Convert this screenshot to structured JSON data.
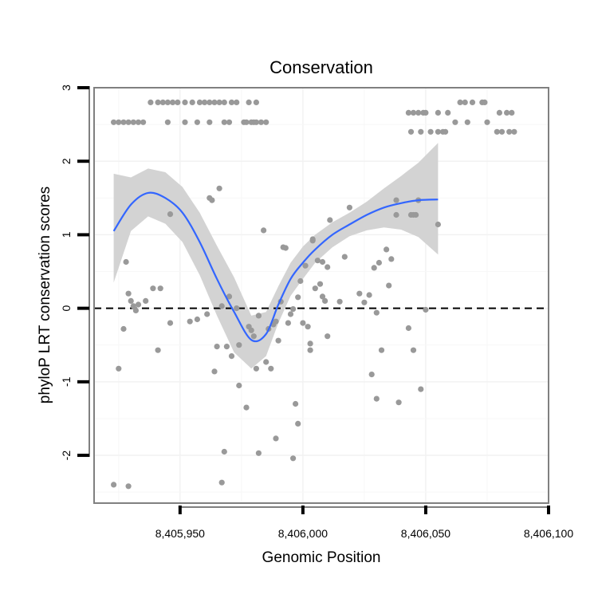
{
  "chart_data": {
    "type": "scatter",
    "title": "Conservation",
    "xlabel": "Genomic Position",
    "ylabel": "phyloP LRT conservation scores",
    "xlim": [
      8405915,
      8406100
    ],
    "ylim": [
      -2.65,
      3.0
    ],
    "x_ticks": [
      8405950,
      8406000,
      8406050,
      8406100
    ],
    "x_tick_labels": [
      "8,405,950",
      "8,406,000",
      "8,406,050",
      "8,406,100"
    ],
    "y_ticks": [
      -2,
      -1,
      0,
      1,
      2,
      3
    ],
    "y_tick_labels": [
      "-2",
      "-1",
      "0",
      "1",
      "2",
      "3"
    ],
    "reference_line": {
      "y": 0,
      "style": "dashed",
      "color": "#000000"
    },
    "grid": true,
    "colors": {
      "points": "#999999",
      "smooth": "#3366FF",
      "band": "#D3D3D3",
      "panel_border": "#808080"
    },
    "points": [
      [
        8405923,
        2.53
      ],
      [
        8405925,
        2.53
      ],
      [
        8405927,
        2.53
      ],
      [
        8405929,
        2.53
      ],
      [
        8405931,
        2.53
      ],
      [
        8405933,
        2.53
      ],
      [
        8405935,
        2.53
      ],
      [
        8405938,
        2.8
      ],
      [
        8405941,
        2.8
      ],
      [
        8405943,
        2.8
      ],
      [
        8405945,
        2.53
      ],
      [
        8405945,
        2.8
      ],
      [
        8405947,
        2.8
      ],
      [
        8405949,
        2.8
      ],
      [
        8405952,
        2.53
      ],
      [
        8405952,
        2.8
      ],
      [
        8405955,
        2.8
      ],
      [
        8405957,
        2.53
      ],
      [
        8405958,
        2.8
      ],
      [
        8405960,
        2.8
      ],
      [
        8405962,
        2.53
      ],
      [
        8405962,
        2.8
      ],
      [
        8405964,
        2.8
      ],
      [
        8405966,
        2.8
      ],
      [
        8405968,
        2.53
      ],
      [
        8405968,
        2.8
      ],
      [
        8405970,
        2.53
      ],
      [
        8405971,
        2.8
      ],
      [
        8405973,
        2.8
      ],
      [
        8405976,
        2.53
      ],
      [
        8405977,
        2.53
      ],
      [
        8405978,
        2.8
      ],
      [
        8405979,
        2.53
      ],
      [
        8405980,
        2.53
      ],
      [
        8405981,
        2.53
      ],
      [
        8405981,
        2.8
      ],
      [
        8405983,
        2.53
      ],
      [
        8405985,
        2.53
      ],
      [
        8406043,
        2.66
      ],
      [
        8406044,
        2.4
      ],
      [
        8406045,
        2.66
      ],
      [
        8406047,
        2.66
      ],
      [
        8406048,
        2.4
      ],
      [
        8406049,
        2.66
      ],
      [
        8406050,
        2.66
      ],
      [
        8406052,
        2.4
      ],
      [
        8406055,
        2.66
      ],
      [
        8406055,
        2.4
      ],
      [
        8406057,
        2.4
      ],
      [
        8406058,
        2.4
      ],
      [
        8406059,
        2.66
      ],
      [
        8406062,
        2.53
      ],
      [
        8406064,
        2.8
      ],
      [
        8406066,
        2.8
      ],
      [
        8406067,
        2.53
      ],
      [
        8406069,
        2.8
      ],
      [
        8406073,
        2.8
      ],
      [
        8406074,
        2.8
      ],
      [
        8406075,
        2.53
      ],
      [
        8406079,
        2.4
      ],
      [
        8406080,
        2.66
      ],
      [
        8406081,
        2.4
      ],
      [
        8406083,
        2.66
      ],
      [
        8406084,
        2.4
      ],
      [
        8406085,
        2.66
      ],
      [
        8406086,
        2.4
      ],
      [
        8405923,
        -2.4
      ],
      [
        8405929,
        -2.42
      ],
      [
        8405925,
        -0.82
      ],
      [
        8405927,
        -0.28
      ],
      [
        8405928,
        0.63
      ],
      [
        8405929,
        0.2
      ],
      [
        8405930,
        0.1
      ],
      [
        8405931,
        0.03
      ],
      [
        8405932,
        -0.03
      ],
      [
        8405933,
        0.05
      ],
      [
        8405936,
        0.1
      ],
      [
        8405939,
        0.27
      ],
      [
        8405942,
        0.27
      ],
      [
        8405941,
        -0.57
      ],
      [
        8405946,
        1.28
      ],
      [
        8405946,
        -0.2
      ],
      [
        8405954,
        -0.18
      ],
      [
        8405957,
        -0.15
      ],
      [
        8405961,
        -0.08
      ],
      [
        8405962,
        1.5
      ],
      [
        8405963,
        1.47
      ],
      [
        8405966,
        1.63
      ],
      [
        8405964,
        -0.86
      ],
      [
        8405965,
        -0.52
      ],
      [
        8405967,
        0.03
      ],
      [
        8405969,
        -0.52
      ],
      [
        8405970,
        0.16
      ],
      [
        8405971,
        -0.65
      ],
      [
        8405973,
        0.0
      ],
      [
        8405974,
        -1.05
      ],
      [
        8405974,
        -0.5
      ],
      [
        8405968,
        -1.95
      ],
      [
        8405967,
        -2.37
      ],
      [
        8405977,
        -1.35
      ],
      [
        8405978,
        -0.25
      ],
      [
        8405979,
        -0.3
      ],
      [
        8405980,
        -0.38
      ],
      [
        8405981,
        -0.82
      ],
      [
        8405982,
        -0.1
      ],
      [
        8405982,
        -1.97
      ],
      [
        8405984,
        1.06
      ],
      [
        8405985,
        -0.73
      ],
      [
        8405986,
        -0.28
      ],
      [
        8405987,
        -0.82
      ],
      [
        8405988,
        -0.22
      ],
      [
        8405989,
        -1.77
      ],
      [
        8405989,
        -0.18
      ],
      [
        8405990,
        -0.44
      ],
      [
        8405991,
        0.09
      ],
      [
        8405992,
        0.83
      ],
      [
        8405993,
        0.82
      ],
      [
        8405994,
        -0.2
      ],
      [
        8405995,
        -0.08
      ],
      [
        8405996,
        -2.04
      ],
      [
        8405996,
        -0.01
      ],
      [
        8405997,
        -1.3
      ],
      [
        8405998,
        -1.57
      ],
      [
        8405998,
        0.15
      ],
      [
        8405999,
        0.37
      ],
      [
        8406000,
        -0.2
      ],
      [
        8406001,
        0.58
      ],
      [
        8406002,
        -0.25
      ],
      [
        8406003,
        -0.48
      ],
      [
        8406003,
        -0.57
      ],
      [
        8406004,
        0.92
      ],
      [
        8406004,
        0.94
      ],
      [
        8406005,
        0.27
      ],
      [
        8406006,
        0.65
      ],
      [
        8406007,
        0.33
      ],
      [
        8406008,
        0.63
      ],
      [
        8406008,
        0.16
      ],
      [
        8406009,
        0.1
      ],
      [
        8406010,
        0.56
      ],
      [
        8406010,
        -0.38
      ],
      [
        8406011,
        1.2
      ],
      [
        8406015,
        0.09
      ],
      [
        8406017,
        0.7
      ],
      [
        8406019,
        1.37
      ],
      [
        8406023,
        0.2
      ],
      [
        8406025,
        0.08
      ],
      [
        8406027,
        0.18
      ],
      [
        8406028,
        -0.9
      ],
      [
        8406029,
        0.55
      ],
      [
        8406030,
        -0.06
      ],
      [
        8406031,
        0.62
      ],
      [
        8406030,
        -1.23
      ],
      [
        8406032,
        -0.57
      ],
      [
        8406034,
        0.8
      ],
      [
        8406035,
        0.31
      ],
      [
        8406036,
        0.67
      ],
      [
        8406038,
        1.27
      ],
      [
        8406038,
        1.47
      ],
      [
        8406039,
        -1.28
      ],
      [
        8406043,
        -0.27
      ],
      [
        8406044,
        1.27
      ],
      [
        8406045,
        1.27
      ],
      [
        8406045,
        -0.57
      ],
      [
        8406046,
        1.27
      ],
      [
        8406047,
        1.47
      ],
      [
        8406048,
        -1.1
      ],
      [
        8406050,
        -0.02
      ],
      [
        8406055,
        1.14
      ]
    ],
    "smooth_x": [
      8405923,
      8405930,
      8405937,
      8405944,
      8405951,
      8405958,
      8405965,
      8405972,
      8405979,
      8405985,
      8405990,
      8405995,
      8406000,
      8406005,
      8406012,
      8406019,
      8406026,
      8406033,
      8406040,
      8406047,
      8406055
    ],
    "smooth_y": [
      1.05,
      1.41,
      1.57,
      1.5,
      1.3,
      0.9,
      0.4,
      -0.05,
      -0.43,
      -0.35,
      0.05,
      0.4,
      0.62,
      0.8,
      1.0,
      1.14,
      1.27,
      1.37,
      1.43,
      1.47,
      1.48
    ],
    "smooth_lower": [
      0.35,
      1.05,
      1.25,
      1.15,
      0.9,
      0.45,
      -0.1,
      -0.6,
      -0.82,
      -0.65,
      -0.2,
      0.17,
      0.4,
      0.62,
      0.83,
      0.98,
      1.06,
      1.1,
      1.07,
      0.97,
      0.73
    ],
    "smooth_upper": [
      1.83,
      1.78,
      1.9,
      1.85,
      1.65,
      1.3,
      0.85,
      0.42,
      -0.1,
      -0.05,
      0.3,
      0.62,
      0.84,
      1.0,
      1.17,
      1.3,
      1.45,
      1.63,
      1.8,
      1.98,
      2.25
    ]
  }
}
